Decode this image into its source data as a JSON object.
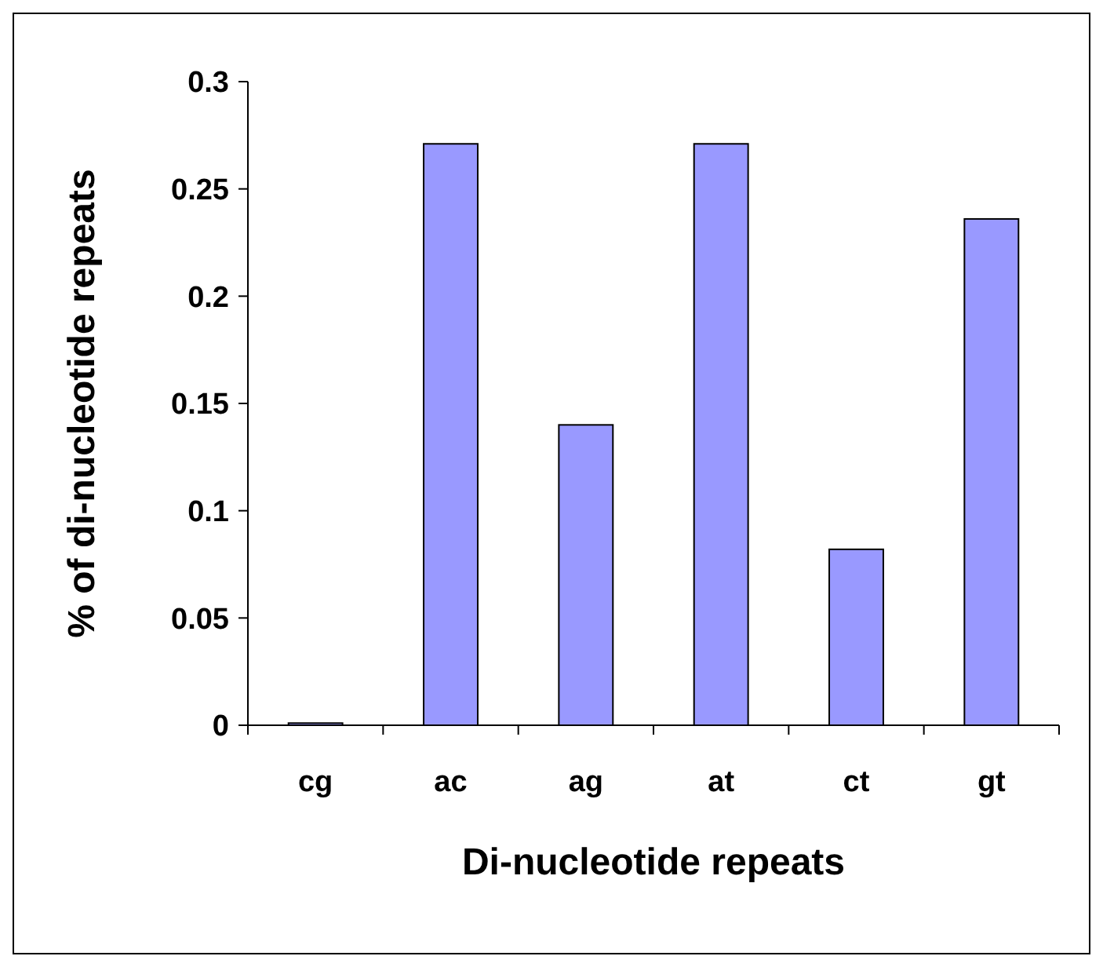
{
  "chart_data": {
    "type": "bar",
    "xlabel": "Di-nucleotide repeats",
    "ylabel": "% of di-nucleotide repeats",
    "categories": [
      "cg",
      "ac",
      "ag",
      "at",
      "ct",
      "gt"
    ],
    "values": [
      0.001,
      0.271,
      0.14,
      0.271,
      0.082,
      0.236
    ],
    "color": "#9999ff",
    "ylim": [
      0,
      0.3
    ],
    "yticks": [
      0,
      0.05,
      0.1,
      0.15,
      0.2,
      0.25,
      0.3
    ],
    "grid": false
  }
}
